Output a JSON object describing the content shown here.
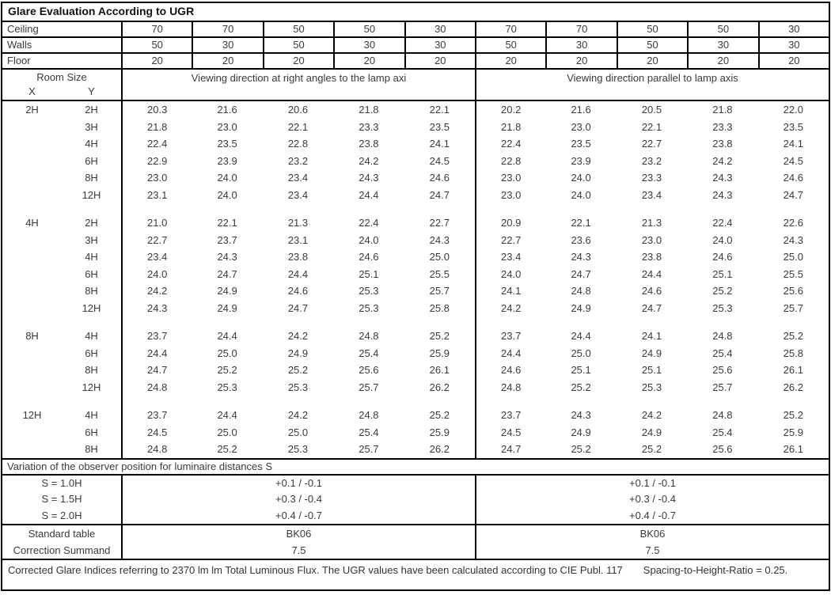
{
  "title": "Glare Evaluation According to UGR",
  "surface_rows": [
    {
      "label": "Ceiling",
      "values": [
        "70",
        "70",
        "50",
        "50",
        "30",
        "70",
        "70",
        "50",
        "50",
        "30"
      ]
    },
    {
      "label": "Walls",
      "values": [
        "50",
        "30",
        "50",
        "30",
        "30",
        "50",
        "30",
        "50",
        "30",
        "30"
      ]
    },
    {
      "label": "Floor",
      "values": [
        "20",
        "20",
        "20",
        "20",
        "20",
        "20",
        "20",
        "20",
        "20",
        "20"
      ]
    }
  ],
  "header": {
    "room_size": "Room Size",
    "x": "X",
    "y": "Y",
    "left_heading": "Viewing direction at right angles to the lamp axi",
    "right_heading": "Viewing direction parallel to lamp axis"
  },
  "blocks": [
    {
      "x": "2H",
      "rows": [
        {
          "y": "2H",
          "left": [
            "20.3",
            "21.6",
            "20.6",
            "21.8",
            "22.1"
          ],
          "right": [
            "20.2",
            "21.6",
            "20.5",
            "21.8",
            "22.0"
          ]
        },
        {
          "y": "3H",
          "left": [
            "21.8",
            "23.0",
            "22.1",
            "23.3",
            "23.5"
          ],
          "right": [
            "21.8",
            "23.0",
            "22.1",
            "23.3",
            "23.5"
          ]
        },
        {
          "y": "4H",
          "left": [
            "22.4",
            "23.5",
            "22.8",
            "23.8",
            "24.1"
          ],
          "right": [
            "22.4",
            "23.5",
            "22.7",
            "23.8",
            "24.1"
          ]
        },
        {
          "y": "6H",
          "left": [
            "22.9",
            "23.9",
            "23.2",
            "24.2",
            "24.5"
          ],
          "right": [
            "22.8",
            "23.9",
            "23.2",
            "24.2",
            "24.5"
          ]
        },
        {
          "y": "8H",
          "left": [
            "23.0",
            "24.0",
            "23.4",
            "24.3",
            "24.6"
          ],
          "right": [
            "23.0",
            "24.0",
            "23.3",
            "24.3",
            "24.6"
          ]
        },
        {
          "y": "12H",
          "left": [
            "23.1",
            "24.0",
            "23.4",
            "24.4",
            "24.7"
          ],
          "right": [
            "23.0",
            "24.0",
            "23.4",
            "24.3",
            "24.7"
          ]
        }
      ]
    },
    {
      "x": "4H",
      "rows": [
        {
          "y": "2H",
          "left": [
            "21.0",
            "22.1",
            "21.3",
            "22.4",
            "22.7"
          ],
          "right": [
            "20.9",
            "22.1",
            "21.3",
            "22.4",
            "22.6"
          ]
        },
        {
          "y": "3H",
          "left": [
            "22.7",
            "23.7",
            "23.1",
            "24.0",
            "24.3"
          ],
          "right": [
            "22.7",
            "23.6",
            "23.0",
            "24.0",
            "24.3"
          ]
        },
        {
          "y": "4H",
          "left": [
            "23.4",
            "24.3",
            "23.8",
            "24.6",
            "25.0"
          ],
          "right": [
            "23.4",
            "24.3",
            "23.8",
            "24.6",
            "25.0"
          ]
        },
        {
          "y": "6H",
          "left": [
            "24.0",
            "24.7",
            "24.4",
            "25.1",
            "25.5"
          ],
          "right": [
            "24.0",
            "24.7",
            "24.4",
            "25.1",
            "25.5"
          ]
        },
        {
          "y": "8H",
          "left": [
            "24.2",
            "24.9",
            "24.6",
            "25.3",
            "25.7"
          ],
          "right": [
            "24.1",
            "24.8",
            "24.6",
            "25.2",
            "25.6"
          ]
        },
        {
          "y": "12H",
          "left": [
            "24.3",
            "24.9",
            "24.7",
            "25.3",
            "25.8"
          ],
          "right": [
            "24.2",
            "24.9",
            "24.7",
            "25.3",
            "25.7"
          ]
        }
      ]
    },
    {
      "x": "8H",
      "rows": [
        {
          "y": "4H",
          "left": [
            "23.7",
            "24.4",
            "24.2",
            "24.8",
            "25.2"
          ],
          "right": [
            "23.7",
            "24.4",
            "24.1",
            "24.8",
            "25.2"
          ]
        },
        {
          "y": "6H",
          "left": [
            "24.4",
            "25.0",
            "24.9",
            "25.4",
            "25.9"
          ],
          "right": [
            "24.4",
            "25.0",
            "24.9",
            "25.4",
            "25.8"
          ]
        },
        {
          "y": "8H",
          "left": [
            "24.7",
            "25.2",
            "25.2",
            "25.6",
            "26.1"
          ],
          "right": [
            "24.6",
            "25.1",
            "25.1",
            "25.6",
            "26.1"
          ]
        },
        {
          "y": "12H",
          "left": [
            "24.8",
            "25.3",
            "25.3",
            "25.7",
            "26.2"
          ],
          "right": [
            "24.8",
            "25.2",
            "25.3",
            "25.7",
            "26.2"
          ]
        }
      ]
    },
    {
      "x": "12H",
      "rows": [
        {
          "y": "4H",
          "left": [
            "23.7",
            "24.4",
            "24.2",
            "24.8",
            "25.2"
          ],
          "right": [
            "23.7",
            "24.3",
            "24.2",
            "24.8",
            "25.2"
          ]
        },
        {
          "y": "6H",
          "left": [
            "24.5",
            "25.0",
            "25.0",
            "25.4",
            "25.9"
          ],
          "right": [
            "24.5",
            "24.9",
            "24.9",
            "25.4",
            "25.9"
          ]
        },
        {
          "y": "8H",
          "left": [
            "24.8",
            "25.2",
            "25.3",
            "25.7",
            "26.2"
          ],
          "right": [
            "24.7",
            "25.2",
            "25.2",
            "25.6",
            "26.1"
          ]
        }
      ]
    }
  ],
  "variation": {
    "heading": "Variation of the observer position for luminaire distances S",
    "rows": [
      {
        "label": "S = 1.0H",
        "left": "+0.1 / -0.1",
        "right": "+0.1 / -0.1"
      },
      {
        "label": "S = 1.5H",
        "left": "+0.3 / -0.4",
        "right": "+0.3 / -0.4"
      },
      {
        "label": "S = 2.0H",
        "left": "+0.4 / -0.7",
        "right": "+0.4 / -0.7"
      }
    ]
  },
  "summary": {
    "rows": [
      {
        "label": "Standard table",
        "left": "BK06",
        "right": "BK06"
      },
      {
        "label": "Correction Summand",
        "left": "7.5",
        "right": "7.5"
      }
    ]
  },
  "footer": {
    "text": "Corrected Glare Indices referring to 2370 lm lm Total Luminous Flux. The UGR values have been calculated according to CIE Publ. 117",
    "ratio": "Spacing-to-Height-Ratio = 0.25."
  }
}
